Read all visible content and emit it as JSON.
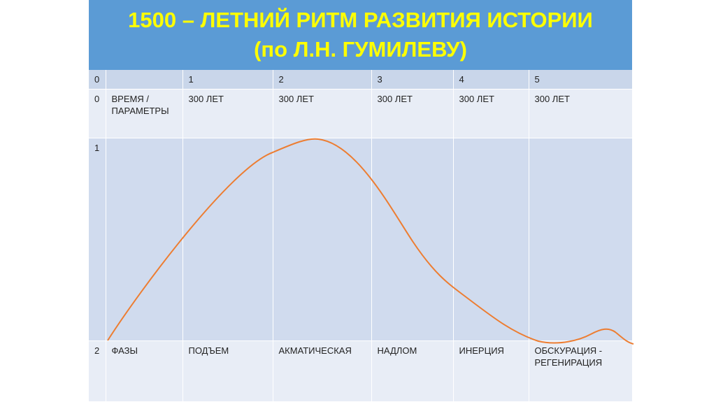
{
  "title": {
    "line1": "1500 – ЛЕТНИЙ РИТМ РАЗВИТИЯ ИСТОРИИ",
    "line2": "(по Л.Н. ГУМИЛЕВУ)"
  },
  "table": {
    "header_row": [
      "0",
      "",
      "1",
      "2",
      "3",
      "4",
      "5"
    ],
    "time_row": {
      "index": "0",
      "label_line1": "ВРЕМЯ /",
      "label_line2": "ПАРАМЕТРЫ",
      "cells": [
        "300 ЛЕТ",
        "300 ЛЕТ",
        "300 ЛЕТ",
        "300 ЛЕТ",
        "300 ЛЕТ"
      ]
    },
    "curve_row": {
      "index": "1"
    },
    "phase_row": {
      "index": "2",
      "label": "ФАЗЫ",
      "cells": [
        "ПОДЪЕМ",
        "АКМАТИЧЕСКАЯ",
        "НАДЛОМ",
        "ИНЕРЦИЯ"
      ],
      "last_line1": "ОБСКУРАЦИЯ -",
      "last_line2": "РЕГЕНИРАЦИЯ"
    }
  },
  "colors": {
    "title_band": "#5b9bd5",
    "title_text": "#ffff00",
    "curve": "#ed7d31"
  }
}
